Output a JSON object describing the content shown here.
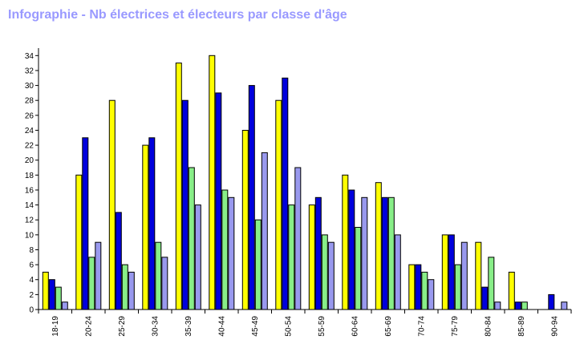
{
  "title": "Infographie - Nb électrices et électeurs par classe d'âge",
  "colors": {
    "title": "#9999ff",
    "series": [
      "#ffff00",
      "#0000dd",
      "#88ee88",
      "#9999ee"
    ],
    "axis": "#000000"
  },
  "chart_data": {
    "type": "bar",
    "title": "Infographie - Nb électrices et électeurs par classe d'âge",
    "xlabel": "",
    "ylabel": "",
    "ylim": [
      0,
      35
    ],
    "yticks": [
      0,
      2,
      4,
      6,
      8,
      10,
      12,
      14,
      16,
      18,
      20,
      22,
      24,
      26,
      28,
      30,
      32,
      34
    ],
    "grid": false,
    "legend": "none",
    "categories": [
      "18-19",
      "20-24",
      "25-29",
      "30-34",
      "35-39",
      "40-44",
      "45-49",
      "50-54",
      "55-59",
      "60-64",
      "65-69",
      "70-74",
      "75-79",
      "80-84",
      "85-89",
      "90-94"
    ],
    "series": [
      {
        "color": "#ffff00",
        "values": [
          5,
          18,
          28,
          22,
          33,
          34,
          24,
          28,
          14,
          18,
          17,
          6,
          10,
          9,
          5,
          0
        ]
      },
      {
        "color": "#0000dd",
        "values": [
          4,
          23,
          13,
          23,
          28,
          29,
          30,
          31,
          15,
          16,
          15,
          6,
          10,
          3,
          1,
          2
        ]
      },
      {
        "color": "#88ee88",
        "values": [
          3,
          7,
          6,
          9,
          19,
          16,
          12,
          14,
          10,
          11,
          15,
          5,
          6,
          7,
          1,
          0
        ]
      },
      {
        "color": "#9999ee",
        "values": [
          1,
          9,
          5,
          7,
          14,
          15,
          21,
          19,
          9,
          15,
          10,
          4,
          9,
          1,
          0,
          1
        ]
      }
    ]
  }
}
